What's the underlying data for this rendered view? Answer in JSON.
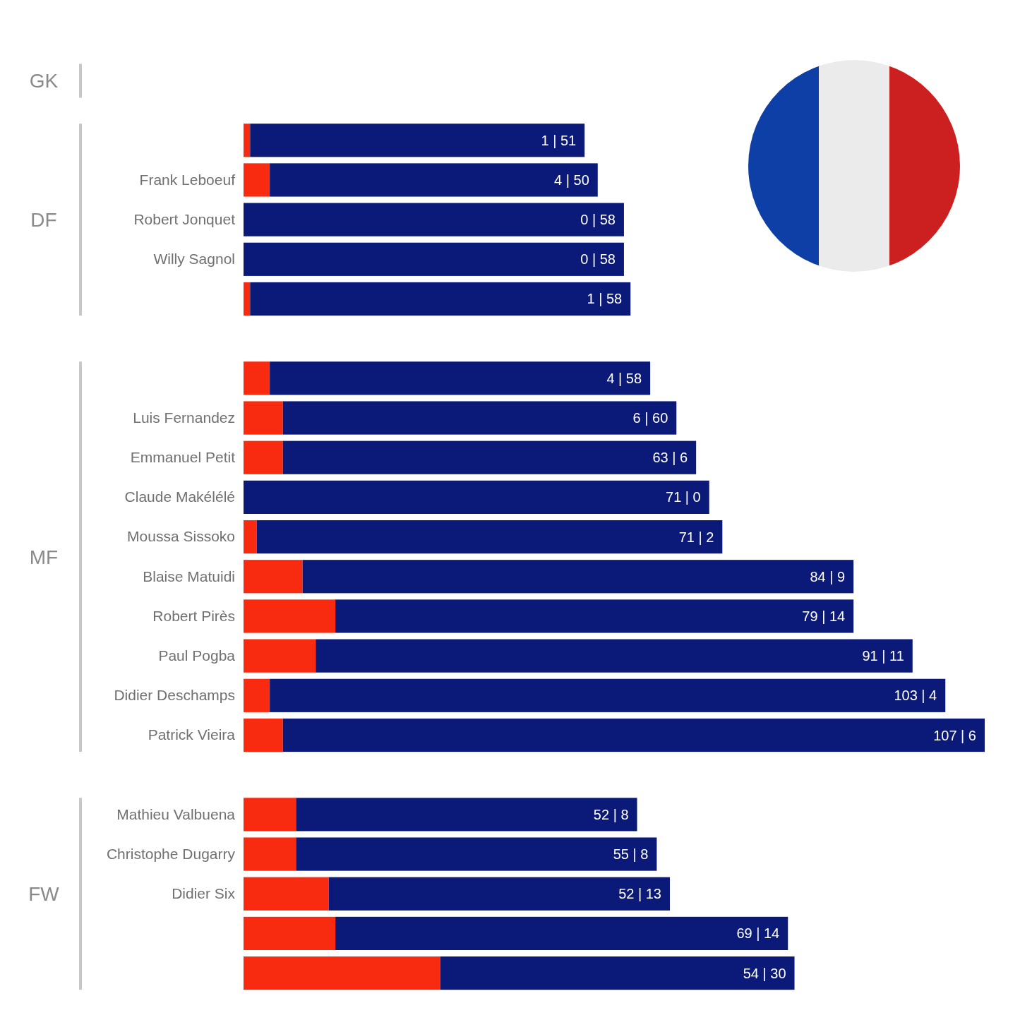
{
  "chart_data": {
    "type": "bar",
    "stacked": true,
    "orientation": "horizontal",
    "categories": [
      null,
      null,
      null,
      "Frank Leboeuf",
      "Robert Jonquet",
      "Willy Sagnol",
      null,
      null,
      null,
      "Luis Fernandez",
      "Emmanuel Petit",
      "Claude Makélélé",
      "Moussa Sissoko",
      "Blaise Matuidi",
      "Robert Pirès",
      "Paul Pogba",
      "Didier Deschamps",
      "Patrick Vieira",
      null,
      "Mathieu Valbuena",
      "Christophe Dugarry",
      "Didier Six",
      null,
      null
    ],
    "series": [
      {
        "color": "#f82b10",
        "values": [
          null,
          null,
          1,
          4,
          0,
          0,
          1,
          null,
          4,
          6,
          6,
          0,
          2,
          9,
          14,
          11,
          4,
          6,
          null,
          8,
          8,
          13,
          14,
          30
        ]
      },
      {
        "color": "#0b1a78",
        "values": [
          null,
          null,
          51,
          50,
          58,
          58,
          58,
          null,
          58,
          60,
          63,
          71,
          71,
          84,
          79,
          91,
          103,
          107,
          null,
          52,
          55,
          52,
          69,
          54
        ],
        "value_labels": [
          null,
          null,
          "1 | 51",
          "4 | 50",
          "0 | 58",
          "0 | 58",
          "1 | 58",
          null,
          "4 | 58",
          "6 | 60",
          "63 | 6",
          "71 | 0",
          "71 | 2",
          "84 | 9",
          "79 | 14",
          "91 | 11",
          "103 | 4",
          "107 | 6",
          null,
          "52 | 8",
          "55 | 8",
          "52 | 13",
          "69 | 14",
          "54 | 30"
        ]
      }
    ],
    "annotations": [
      "GK",
      "DF",
      "MF",
      "FW"
    ]
  }
}
